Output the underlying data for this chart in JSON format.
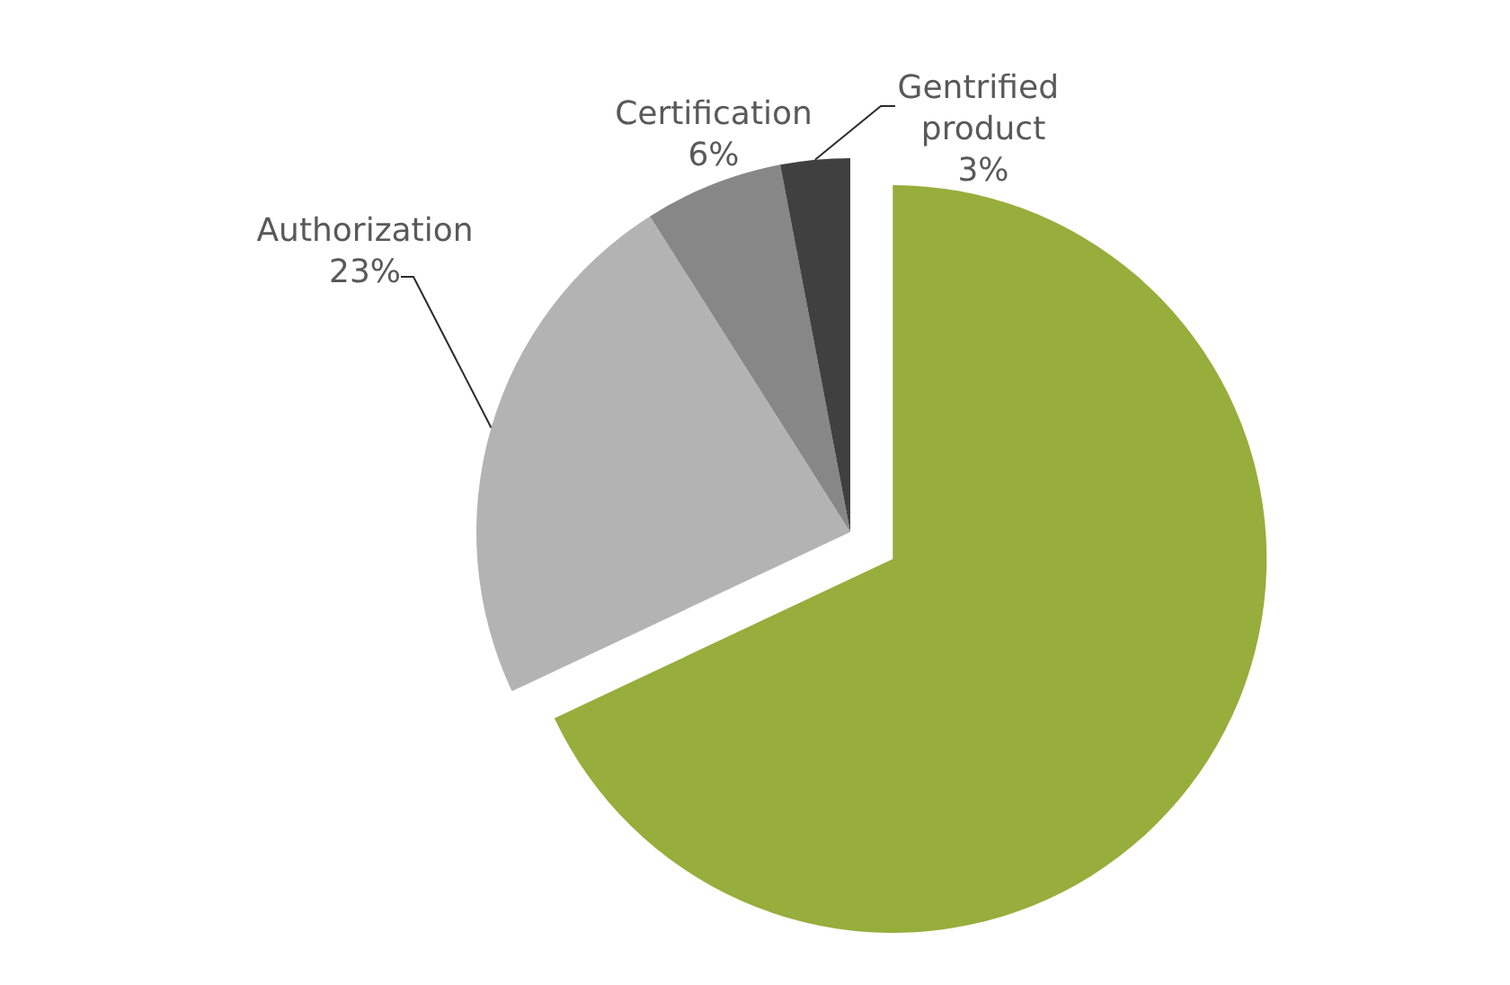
{
  "chart_data": {
    "type": "pie",
    "categories": [
      null,
      "Authorization",
      "Certification",
      "Gentrified product"
    ],
    "values": [
      68,
      23,
      6,
      3
    ],
    "colors": [
      "#97ad3c",
      "#b3b3b3",
      "#878787",
      "#404040"
    ],
    "value_labels": [
      null,
      "23%",
      "6%",
      "3%"
    ]
  }
}
